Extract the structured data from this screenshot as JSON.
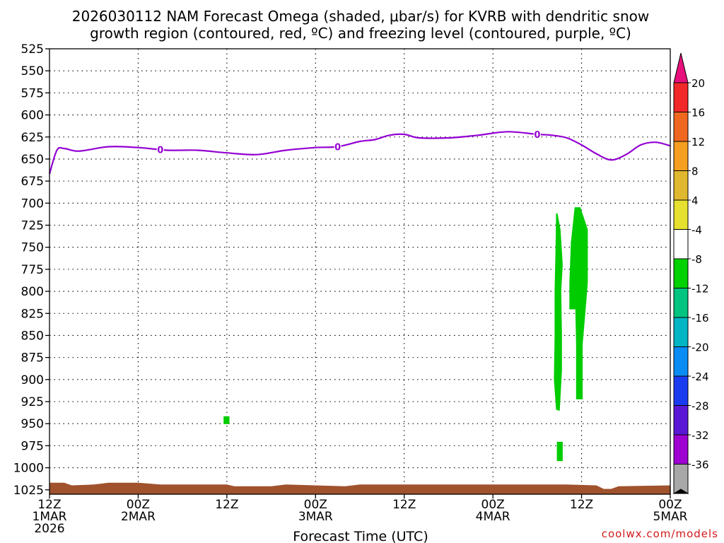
{
  "title": {
    "line1": "2026030112 NAM Forecast Omega (shaded, μbar/s) for KVRB with dendritic snow",
    "line2": "growth region (contoured, red, ºC) and freezing level (contoured, purple, ºC)"
  },
  "credit": "coolwx.com/models",
  "chart_data": {
    "type": "time-height",
    "xlabel": "Forecast Time (UTC)",
    "x_range_hours": [
      0,
      84
    ],
    "x_ticks": [
      {
        "hour": 0,
        "lines": [
          "12Z",
          "1MAR",
          "2026"
        ]
      },
      {
        "hour": 12,
        "lines": [
          "00Z",
          "2MAR"
        ]
      },
      {
        "hour": 24,
        "lines": [
          "12Z"
        ]
      },
      {
        "hour": 36,
        "lines": [
          "00Z",
          "3MAR"
        ]
      },
      {
        "hour": 48,
        "lines": [
          "12Z"
        ]
      },
      {
        "hour": 60,
        "lines": [
          "00Z",
          "4MAR"
        ]
      },
      {
        "hour": 72,
        "lines": [
          "12Z"
        ]
      },
      {
        "hour": 84,
        "lines": [
          "00Z",
          "5MAR"
        ]
      }
    ],
    "y_axis": "pressure (hPa)",
    "y_range": [
      525,
      1030
    ],
    "y_ticks": [
      525,
      550,
      575,
      600,
      625,
      650,
      675,
      700,
      725,
      750,
      775,
      800,
      825,
      850,
      875,
      900,
      925,
      950,
      975,
      1000,
      1025
    ],
    "grid": "dotted",
    "freezing_level": {
      "color": "#9400d3",
      "label": "0",
      "label_hours": [
        15,
        39,
        66
      ],
      "hours": [
        0,
        1,
        2,
        4,
        8,
        12,
        16,
        20,
        24,
        28,
        32,
        36,
        39,
        42,
        44,
        46,
        48,
        50,
        54,
        58,
        62,
        66,
        68,
        70,
        72,
        74,
        76,
        78,
        80,
        82,
        84
      ],
      "pressure": [
        667,
        640,
        638,
        641,
        636,
        637,
        640,
        640,
        643,
        645,
        640,
        637,
        636,
        630,
        628,
        623,
        622,
        626,
        626,
        623,
        619,
        622,
        623,
        626,
        634,
        644,
        651,
        645,
        634,
        631,
        635
      ]
    },
    "omega_regions": [
      {
        "name": "shaded",
        "range": [
          -8,
          -4
        ],
        "color": "#00cc00",
        "polygon": [
          [
            68.7,
            712
          ],
          [
            69.1,
            730
          ],
          [
            69.4,
            770
          ],
          [
            69.2,
            800
          ],
          [
            69.3,
            850
          ],
          [
            69.3,
            890
          ],
          [
            69.0,
            935
          ],
          [
            68.6,
            934
          ],
          [
            68.3,
            900
          ],
          [
            68.4,
            850
          ],
          [
            68.4,
            800
          ],
          [
            68.5,
            760
          ],
          [
            68.6,
            712
          ]
        ]
      },
      {
        "name": "shaded",
        "range": [
          -8,
          -4
        ],
        "color": "#00cc00",
        "polygon": [
          [
            71.1,
            705
          ],
          [
            71.8,
            705
          ],
          [
            72.8,
            730
          ],
          [
            72.8,
            790
          ],
          [
            72.4,
            830
          ],
          [
            72.1,
            860
          ],
          [
            72.1,
            922
          ],
          [
            71.3,
            922
          ],
          [
            71.3,
            860
          ],
          [
            71.2,
            820
          ],
          [
            70.4,
            820
          ],
          [
            70.4,
            790
          ],
          [
            70.6,
            745
          ],
          [
            71.1,
            705
          ]
        ]
      },
      {
        "name": "shaded",
        "range": [
          -8,
          -4
        ],
        "color": "#00cc00",
        "polygon": [
          [
            68.7,
            971
          ],
          [
            69.4,
            971
          ],
          [
            69.4,
            992
          ],
          [
            68.7,
            992
          ]
        ]
      },
      {
        "name": "shaded",
        "range": [
          -8,
          -4
        ],
        "color": "#00cc00",
        "polygon": [
          [
            23.6,
            942
          ],
          [
            24.3,
            942
          ],
          [
            24.3,
            950
          ],
          [
            23.6,
            950
          ]
        ]
      }
    ],
    "terrain": {
      "color": "#a0522d",
      "hours": [
        0,
        2,
        3,
        6,
        8,
        12,
        15,
        16,
        24,
        25,
        30,
        32,
        40,
        42,
        60,
        70,
        74,
        75,
        76,
        77,
        84
      ],
      "pressure": [
        1017,
        1017,
        1020,
        1019,
        1017,
        1017,
        1019,
        1019,
        1019,
        1021,
        1021,
        1019,
        1021,
        1019,
        1019,
        1019,
        1020,
        1024,
        1024,
        1021,
        1020
      ]
    },
    "colorbar": {
      "labels": [
        "20",
        "16",
        "12",
        "8",
        "4",
        "-4",
        "-8",
        "-12",
        "-16",
        "-20",
        "-24",
        "-28",
        "-32",
        "-36"
      ],
      "top_arrow_color": "#e8107a",
      "bottom_arrow_color": "#000000",
      "colors": [
        "#f32828",
        "#f06820",
        "#f59e20",
        "#e0b830",
        "#e6e030",
        "#ffffff",
        "#00d100",
        "#00c47f",
        "#00b6c4",
        "#0a8cf5",
        "#1a3cf0",
        "#5a18d6",
        "#9d00d1",
        "#a8a8a8"
      ]
    }
  }
}
